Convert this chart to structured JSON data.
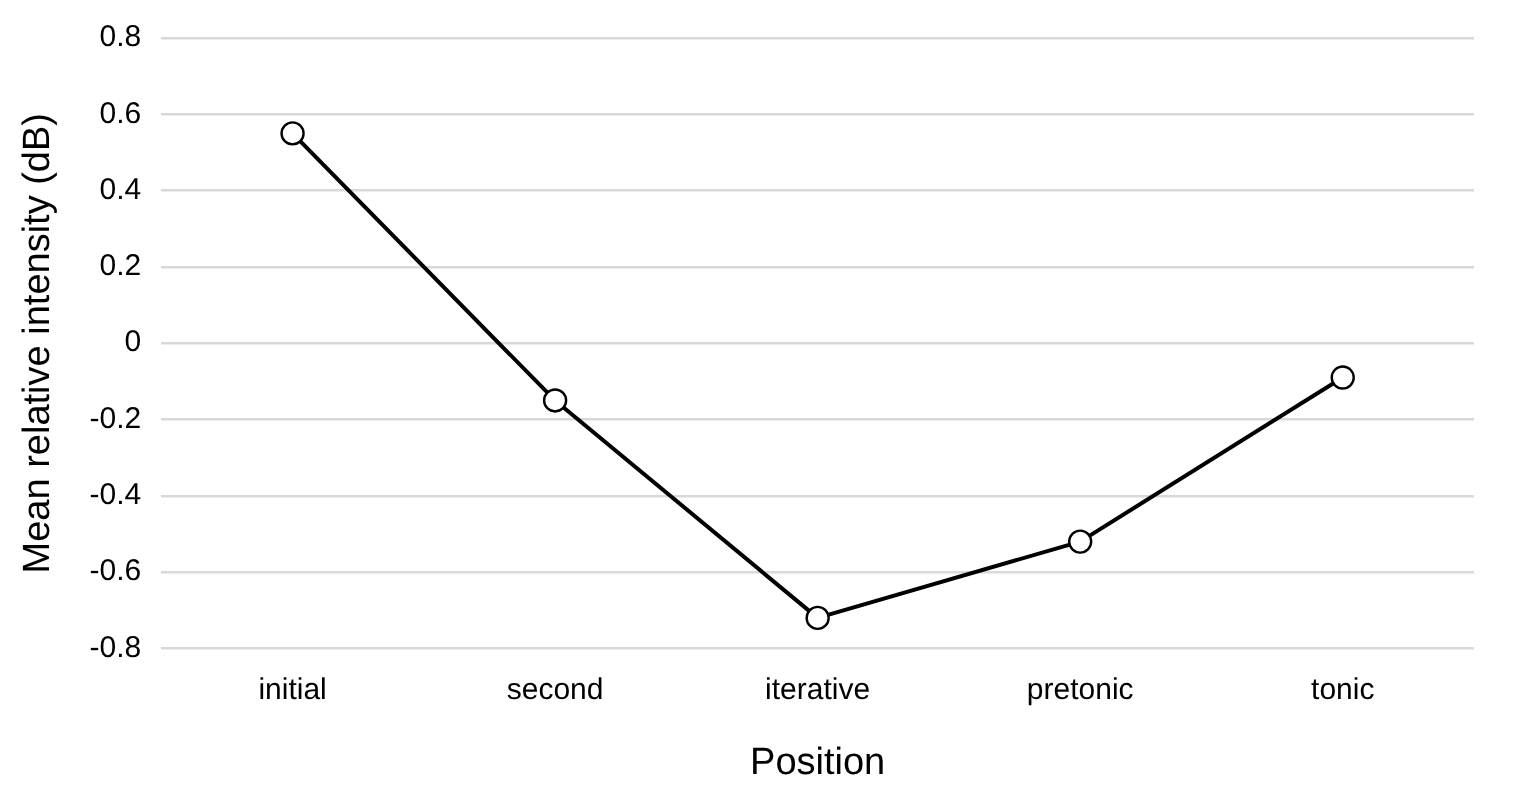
{
  "chart_data": {
    "type": "line",
    "xlabel": "Position",
    "ylabel": "Mean relative intensity (dB)",
    "categories": [
      "initial",
      "second",
      "iterative",
      "pretonic",
      "tonic"
    ],
    "series": [
      {
        "color": "#000000",
        "values": [
          0.55,
          -0.15,
          -0.72,
          -0.52,
          -0.09
        ]
      }
    ],
    "ylim": [
      -0.8,
      0.8
    ],
    "yticks": [
      -0.8,
      -0.6,
      -0.4,
      -0.2,
      0,
      0.2,
      0.4,
      0.6,
      0.8
    ],
    "grid": "y",
    "legend": false,
    "marker": "circle",
    "line_style": "solid"
  }
}
